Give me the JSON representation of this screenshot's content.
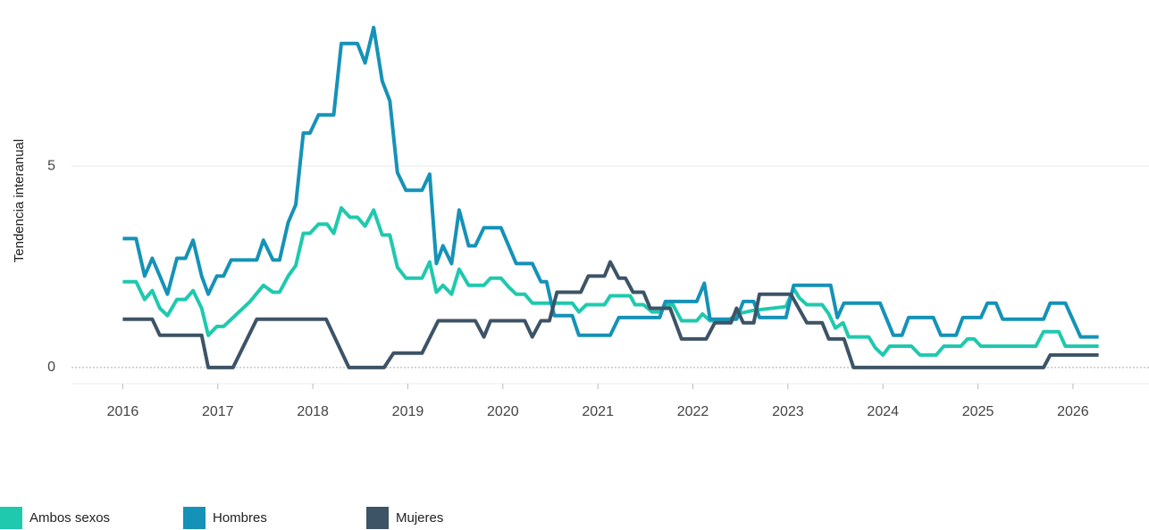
{
  "chart_data": {
    "type": "line",
    "ylabel": "Tendencia interanual",
    "xlim": [
      2015.46,
      2026.8
    ],
    "xticks": [
      2016,
      2017,
      2018,
      2019,
      2020,
      2021,
      2022,
      2023,
      2024,
      2025,
      2026
    ],
    "ylim": [
      -0.4,
      8.9
    ],
    "yticks": [
      0,
      5
    ],
    "grid": true,
    "legend": "bottom",
    "series": [
      {
        "name": "Ambos sexos",
        "color": "#1fc9ae",
        "x": [
          2016.0,
          2016.14,
          2016.23,
          2016.31,
          2016.39,
          2016.47,
          2016.57,
          2016.66,
          2016.74,
          2016.83,
          2016.9,
          2016.99,
          2017.06,
          2017.34,
          2017.48,
          2017.58,
          2017.65,
          2017.74,
          2017.82,
          2017.9,
          2017.97,
          2018.06,
          2018.15,
          2018.22,
          2018.3,
          2018.39,
          2018.47,
          2018.55,
          2018.64,
          2018.73,
          2018.81,
          2018.89,
          2018.98,
          2019.15,
          2019.23,
          2019.3,
          2019.37,
          2019.46,
          2019.54,
          2019.64,
          2019.8,
          2019.87,
          2019.98,
          2020.06,
          2020.14,
          2020.23,
          2020.31,
          2020.73,
          2020.8,
          2020.88,
          2021.07,
          2021.13,
          2021.34,
          2021.39,
          2021.48,
          2021.57,
          2021.65,
          2021.71,
          2021.79,
          2021.88,
          2022.04,
          2022.1,
          2022.18,
          2022.37,
          2022.46,
          2022.64,
          2022.98,
          2023.06,
          2023.12,
          2023.2,
          2023.36,
          2023.43,
          2023.5,
          2023.58,
          2023.64,
          2023.85,
          2023.92,
          2024.0,
          2024.07,
          2024.3,
          2024.39,
          2024.56,
          2024.64,
          2024.82,
          2024.89,
          2024.96,
          2025.03,
          2025.61,
          2025.69,
          2025.85,
          2025.92,
          2026.27
        ],
        "values": [
          2.13,
          2.13,
          1.69,
          1.91,
          1.47,
          1.29,
          1.69,
          1.69,
          1.91,
          1.47,
          0.8,
          1.02,
          1.02,
          1.64,
          2.04,
          1.87,
          1.87,
          2.27,
          2.53,
          3.33,
          3.33,
          3.56,
          3.56,
          3.33,
          3.96,
          3.73,
          3.73,
          3.51,
          3.91,
          3.29,
          3.29,
          2.49,
          2.22,
          2.22,
          2.62,
          1.87,
          2.04,
          1.82,
          2.44,
          2.04,
          2.04,
          2.22,
          2.22,
          2.0,
          1.82,
          1.82,
          1.6,
          1.6,
          1.38,
          1.56,
          1.56,
          1.78,
          1.78,
          1.56,
          1.56,
          1.38,
          1.38,
          1.56,
          1.56,
          1.16,
          1.16,
          1.33,
          1.16,
          1.16,
          1.33,
          1.42,
          1.51,
          1.96,
          1.73,
          1.56,
          1.56,
          1.33,
          0.98,
          1.11,
          0.76,
          0.76,
          0.49,
          0.31,
          0.53,
          0.53,
          0.31,
          0.31,
          0.53,
          0.53,
          0.71,
          0.71,
          0.53,
          0.53,
          0.89,
          0.89,
          0.53,
          0.53
        ]
      },
      {
        "name": "Hombres",
        "color": "#1592b8",
        "x": [
          2016.0,
          2016.14,
          2016.23,
          2016.31,
          2016.39,
          2016.47,
          2016.57,
          2016.66,
          2016.74,
          2016.83,
          2016.9,
          2016.99,
          2017.06,
          2017.14,
          2017.41,
          2017.48,
          2017.58,
          2017.65,
          2017.74,
          2017.82,
          2017.9,
          2017.97,
          2018.06,
          2018.22,
          2018.3,
          2018.47,
          2018.55,
          2018.64,
          2018.73,
          2018.81,
          2018.89,
          2018.98,
          2019.15,
          2019.23,
          2019.3,
          2019.37,
          2019.46,
          2019.54,
          2019.64,
          2019.71,
          2019.8,
          2019.98,
          2020.14,
          2020.31,
          2020.4,
          2020.46,
          2020.54,
          2020.73,
          2020.8,
          2021.13,
          2021.22,
          2021.65,
          2021.71,
          2022.04,
          2022.12,
          2022.18,
          2022.37,
          2022.46,
          2022.53,
          2022.64,
          2022.7,
          2022.98,
          2023.06,
          2023.45,
          2023.52,
          2023.59,
          2023.97,
          2024.11,
          2024.2,
          2024.27,
          2024.53,
          2024.61,
          2024.77,
          2024.84,
          2025.03,
          2025.1,
          2025.19,
          2025.26,
          2025.69,
          2025.76,
          2025.92,
          2026.08,
          2026.27
        ],
        "values": [
          3.2,
          3.2,
          2.27,
          2.71,
          2.27,
          1.82,
          2.71,
          2.71,
          3.16,
          2.27,
          1.82,
          2.27,
          2.27,
          2.67,
          2.67,
          3.16,
          2.67,
          2.67,
          3.6,
          4.04,
          5.82,
          5.82,
          6.27,
          6.27,
          8.04,
          8.04,
          7.56,
          8.44,
          7.11,
          6.62,
          4.84,
          4.4,
          4.4,
          4.8,
          2.58,
          3.02,
          2.58,
          3.91,
          3.02,
          3.02,
          3.47,
          3.47,
          2.58,
          2.58,
          2.13,
          2.13,
          1.29,
          1.29,
          0.8,
          0.8,
          1.24,
          1.24,
          1.64,
          1.64,
          2.09,
          1.2,
          1.2,
          1.2,
          1.64,
          1.64,
          1.24,
          1.24,
          2.04,
          2.04,
          1.24,
          1.6,
          1.6,
          0.8,
          0.8,
          1.24,
          1.24,
          0.8,
          0.8,
          1.24,
          1.24,
          1.6,
          1.6,
          1.2,
          1.2,
          1.6,
          1.6,
          0.76,
          0.76
        ]
      },
      {
        "name": "Mujeres",
        "color": "#3d5366",
        "x": [
          2016.0,
          2016.31,
          2016.39,
          2016.83,
          2016.9,
          2017.16,
          2017.41,
          2018.14,
          2018.38,
          2018.75,
          2018.85,
          2019.15,
          2019.32,
          2019.71,
          2019.8,
          2019.87,
          2020.23,
          2020.31,
          2020.4,
          2020.49,
          2020.57,
          2020.82,
          2020.9,
          2021.07,
          2021.13,
          2021.22,
          2021.29,
          2021.37,
          2021.48,
          2021.55,
          2021.76,
          2021.88,
          2022.14,
          2022.23,
          2022.4,
          2022.46,
          2022.53,
          2022.64,
          2022.7,
          2023.03,
          2023.2,
          2023.36,
          2023.43,
          2023.59,
          2023.69,
          2025.69,
          2025.76,
          2026.27
        ],
        "values": [
          1.2,
          1.2,
          0.8,
          0.8,
          0,
          0,
          1.2,
          1.2,
          0,
          0,
          0.36,
          0.36,
          1.16,
          1.16,
          0.76,
          1.16,
          1.16,
          0.76,
          1.16,
          1.16,
          1.87,
          1.87,
          2.27,
          2.27,
          2.62,
          2.22,
          2.22,
          1.87,
          1.87,
          1.47,
          1.47,
          0.71,
          0.71,
          1.11,
          1.11,
          1.47,
          1.11,
          1.11,
          1.82,
          1.82,
          1.11,
          1.11,
          0.71,
          0.71,
          0,
          0,
          0.31,
          0.31
        ]
      }
    ]
  }
}
